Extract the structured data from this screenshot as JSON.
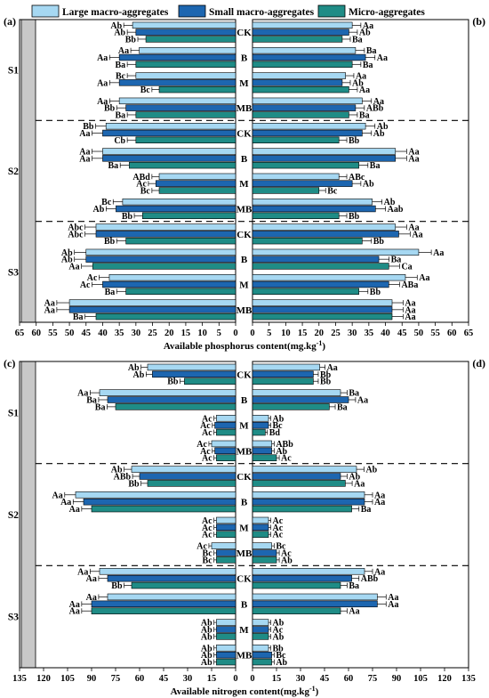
{
  "legend": {
    "items": [
      {
        "label": "Large macro-aggregates",
        "color": "#a6d8f2"
      },
      {
        "label": "Small macro-aggregates",
        "color": "#1d66b0"
      },
      {
        "label": "Micro-aggregates",
        "color": "#1f8c86"
      }
    ]
  },
  "chart_data": [
    {
      "id": "P",
      "type": "bar",
      "orientation": "horizontal-mirrored",
      "panel_labels": [
        "(a)",
        "(b)"
      ],
      "stages": [
        "S1",
        "S2",
        "S3"
      ],
      "treatments": [
        "CK",
        "B",
        "M",
        "MB"
      ],
      "xlabel": "Available phosphorus content(mg.kg",
      "xlabel_sup": "-1",
      "xlabel_tail": ")",
      "xlim": [
        0,
        65
      ],
      "left_ticks": [
        "65",
        "60",
        "55",
        "50",
        "45",
        "40",
        "35",
        "30",
        "25",
        "20",
        "15",
        "10",
        "5",
        "0"
      ],
      "right_ticks": [
        "0",
        "5",
        "10",
        "15",
        "20",
        "25",
        "30",
        "35",
        "40",
        "45",
        "50",
        "55",
        "60",
        "65"
      ],
      "series": [
        "Large macro-aggregates",
        "Small macro-aggregates",
        "Micro-aggregates"
      ],
      "left_values": [
        [
          [
            31,
            30,
            27
          ],
          [
            29,
            35,
            30
          ],
          [
            30,
            35,
            23
          ],
          [
            35,
            33,
            30
          ]
        ],
        [
          [
            39,
            40,
            30
          ],
          [
            40,
            40,
            32
          ],
          [
            23,
            24,
            23
          ],
          [
            34,
            36,
            28
          ]
        ],
        [
          [
            42,
            42,
            33
          ],
          [
            45,
            45,
            43
          ],
          [
            38,
            40,
            33
          ],
          [
            50,
            50,
            42
          ]
        ]
      ],
      "left_labels": [
        [
          [
            "Ab",
            "Ab",
            "Bb"
          ],
          [
            "Aa",
            "Aa",
            "Ba"
          ],
          [
            "Bc",
            "Aa",
            "Bc"
          ],
          [
            "Aa",
            "Bb",
            "Ba"
          ]
        ],
        [
          [
            "Bb",
            "Aa",
            "Cb"
          ],
          [
            "Aa",
            "Aa",
            "Ba"
          ],
          [
            "ABd",
            "Ac",
            "Bc"
          ],
          [
            "Bc",
            "Ab",
            "Bb"
          ]
        ],
        [
          [
            "Abc",
            "Abc",
            "Bb"
          ],
          [
            "Ab",
            "Ab",
            "Aa"
          ],
          [
            "Ac",
            "Ac",
            "Ba"
          ],
          [
            "Aa",
            "Aa",
            "Ba"
          ]
        ]
      ],
      "right_values": [
        [
          [
            30,
            29,
            27
          ],
          [
            31,
            34,
            30
          ],
          [
            28,
            27,
            29
          ],
          [
            33,
            31,
            29
          ]
        ],
        [
          [
            34,
            33,
            26
          ],
          [
            43,
            43,
            32
          ],
          [
            26,
            30,
            20
          ],
          [
            36,
            37,
            26
          ]
        ],
        [
          [
            43,
            44,
            33
          ],
          [
            50,
            38,
            41
          ],
          [
            46,
            41,
            32
          ],
          [
            42,
            42,
            42
          ]
        ]
      ],
      "right_labels": [
        [
          [
            "Aa",
            "Ab",
            "Ba"
          ],
          [
            "Ba",
            "Aa",
            "Ba"
          ],
          [
            "Aa",
            "Ab",
            "Aa"
          ],
          [
            "Aa",
            "ABb",
            "Ba"
          ]
        ],
        [
          [
            "Ab",
            "Ab",
            "Bb"
          ],
          [
            "Aa",
            "Aa",
            "Ba"
          ],
          [
            "ABc",
            "Ab",
            "Bc"
          ],
          [
            "Ab",
            "Aab",
            "Bb"
          ]
        ],
        [
          [
            "Aa",
            "Aa",
            "Bb"
          ],
          [
            "Aa",
            "Ba",
            "Ca"
          ],
          [
            "Aa",
            "ABa",
            "Bb"
          ],
          [
            "Aa",
            "Aa",
            "Aa"
          ]
        ]
      ]
    },
    {
      "id": "N",
      "type": "bar",
      "orientation": "horizontal-mirrored",
      "panel_labels": [
        "(c)",
        "(d)"
      ],
      "stages": [
        "S1",
        "S2",
        "S3"
      ],
      "treatments": [
        "CK",
        "B",
        "M",
        "MB"
      ],
      "xlabel": "Available nitrogen content(mg.kg",
      "xlabel_sup": "-1",
      "xlabel_tail": ")",
      "xlim": [
        0,
        135
      ],
      "left_ticks": [
        "135",
        "120",
        "105",
        "90",
        "75",
        "60",
        "45",
        "30",
        "15",
        "0"
      ],
      "right_ticks": [
        "0",
        "15",
        "30",
        "45",
        "60",
        "75",
        "90",
        "105",
        "120",
        "135"
      ],
      "series": [
        "Large macro-aggregates",
        "Small macro-aggregates",
        "Micro-aggregates"
      ],
      "left_values": [
        [
          [
            55,
            52,
            32
          ],
          [
            85,
            80,
            75
          ],
          [
            12,
            13,
            12
          ],
          [
            15,
            13,
            12
          ]
        ],
        [
          [
            65,
            60,
            55
          ],
          [
            100,
            95,
            90
          ],
          [
            12,
            12,
            12
          ],
          [
            15,
            12,
            12
          ]
        ],
        [
          [
            85,
            80,
            65
          ],
          [
            80,
            90,
            90
          ],
          [
            12,
            12,
            12
          ],
          [
            12,
            12,
            12
          ]
        ]
      ],
      "left_labels": [
        [
          [
            "Ab",
            "Ab",
            "Bb"
          ],
          [
            "Aa",
            "Ba",
            "Ba"
          ],
          [
            "Ac",
            "Ac",
            "Ac"
          ],
          [
            "Ac",
            "Ac",
            "Ac"
          ]
        ],
        [
          [
            "Ab",
            "ABb",
            "Bb"
          ],
          [
            "Aa",
            "Aa",
            "Aa"
          ],
          [
            "Ac",
            "Ac",
            "Ac"
          ],
          [
            "Ac",
            "Bc",
            "Bc"
          ]
        ],
        [
          [
            "Aa",
            "Aa",
            "Bb"
          ],
          [
            "Aa",
            "Aa",
            "Aa"
          ],
          [
            "Ab",
            "Ab",
            "Ab"
          ],
          [
            "Ab",
            "Ab",
            "Ab"
          ]
        ]
      ],
      "right_values": [
        [
          [
            42,
            38,
            38
          ],
          [
            55,
            60,
            48
          ],
          [
            10,
            10,
            8
          ],
          [
            12,
            12,
            15
          ]
        ],
        [
          [
            65,
            55,
            58
          ],
          [
            70,
            70,
            62
          ],
          [
            10,
            10,
            10
          ],
          [
            12,
            15,
            15
          ]
        ],
        [
          [
            70,
            62,
            55
          ],
          [
            78,
            78,
            55
          ],
          [
            10,
            10,
            10
          ],
          [
            10,
            12,
            12
          ]
        ]
      ],
      "right_labels": [
        [
          [
            "Aa",
            "Bb",
            "Bb"
          ],
          [
            "Ba",
            "Aa",
            "Ba"
          ],
          [
            "Ab",
            "Bc",
            "Bd"
          ],
          [
            "ABb",
            "Ab",
            "Ac"
          ]
        ],
        [
          [
            "Ab",
            "Ab",
            "Aa"
          ],
          [
            "Aa",
            "Aa",
            "Ba"
          ],
          [
            "Ac",
            "Ac",
            "Ac"
          ],
          [
            "Bc",
            "Ac",
            "Ab"
          ]
        ],
        [
          [
            "Aa",
            "ABb",
            "Ba"
          ],
          [
            "Aa",
            "Aa",
            "Aa"
          ],
          [
            "Ab",
            "Ac",
            "Ab"
          ],
          [
            "Bb",
            "Bc",
            "Ab"
          ]
        ]
      ]
    }
  ]
}
